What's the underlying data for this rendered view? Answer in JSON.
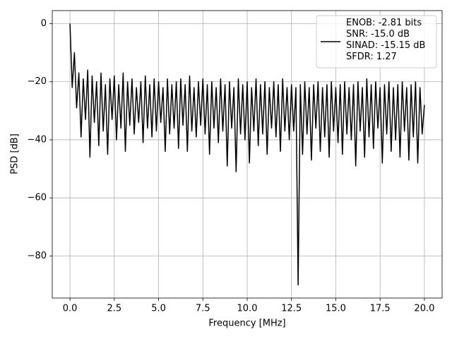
{
  "chart_data": {
    "type": "line",
    "xlabel": "Frequency [MHz]",
    "ylabel": "PSD [dB]",
    "x": [
      0,
      0.125,
      0.25,
      0.375,
      0.5,
      0.625,
      0.75,
      0.875,
      1,
      1.125,
      1.25,
      1.375,
      1.5,
      1.625,
      1.75,
      1.875,
      2,
      2.125,
      2.25,
      2.375,
      2.5,
      2.625,
      2.75,
      2.875,
      3,
      3.125,
      3.25,
      3.375,
      3.5,
      3.625,
      3.75,
      3.875,
      4,
      4.125,
      4.25,
      4.375,
      4.5,
      4.625,
      4.75,
      4.875,
      5,
      5.125,
      5.25,
      5.375,
      5.5,
      5.625,
      5.75,
      5.875,
      6,
      6.125,
      6.25,
      6.375,
      6.5,
      6.625,
      6.75,
      6.875,
      7,
      7.125,
      7.25,
      7.375,
      7.5,
      7.625,
      7.75,
      7.875,
      8,
      8.125,
      8.25,
      8.375,
      8.5,
      8.625,
      8.75,
      8.875,
      9,
      9.125,
      9.25,
      9.375,
      9.5,
      9.625,
      9.75,
      9.875,
      10,
      10.125,
      10.25,
      10.375,
      10.5,
      10.625,
      10.75,
      10.875,
      11,
      11.125,
      11.25,
      11.375,
      11.5,
      11.625,
      11.75,
      11.875,
      12,
      12.125,
      12.25,
      12.375,
      12.5,
      12.625,
      12.75,
      12.875,
      13,
      13.125,
      13.25,
      13.375,
      13.5,
      13.625,
      13.75,
      13.875,
      14,
      14.125,
      14.25,
      14.375,
      14.5,
      14.625,
      14.75,
      14.875,
      15,
      15.125,
      15.25,
      15.375,
      15.5,
      15.625,
      15.75,
      15.875,
      16,
      16.125,
      16.25,
      16.375,
      16.5,
      16.625,
      16.75,
      16.875,
      17,
      17.125,
      17.25,
      17.375,
      17.5,
      17.625,
      17.75,
      17.875,
      18,
      18.125,
      18.25,
      18.375,
      18.5,
      18.625,
      18.75,
      18.875,
      19,
      19.125,
      19.25,
      19.375,
      19.5,
      19.625,
      19.75,
      19.875,
      20
    ],
    "series": [
      {
        "name": "ENOB: -2.81 bits\nSNR: -15.0 dB\nSINAD: -15.15 dB\nSFDR: 1.27",
        "color": "#000000",
        "values": [
          0,
          -22,
          -10,
          -29,
          -17,
          -39,
          -19,
          -33,
          -16,
          -46,
          -18,
          -34,
          -20,
          -42,
          -17,
          -37,
          -21,
          -45,
          -19,
          -33,
          -18,
          -40,
          -21,
          -36,
          -17,
          -44,
          -20,
          -35,
          -19,
          -38,
          -22,
          -34,
          -20,
          -41,
          -18,
          -36,
          -21,
          -39,
          -19,
          -37,
          -20,
          -34,
          -22,
          -44,
          -19,
          -38,
          -21,
          -36,
          -20,
          -43,
          -19,
          -35,
          -21,
          -44,
          -18,
          -37,
          -22,
          -39,
          -20,
          -35,
          -19,
          -38,
          -21,
          -45,
          -20,
          -36,
          -22,
          -41,
          -19,
          -37,
          -21,
          -49,
          -20,
          -36,
          -22,
          -51,
          -19,
          -38,
          -21,
          -40,
          -20,
          -48,
          -22,
          -37,
          -19,
          -42,
          -21,
          -38,
          -20,
          -45,
          -22,
          -36,
          -20,
          -39,
          -21,
          -44,
          -19,
          -37,
          -22,
          -40,
          -21,
          -37,
          -22,
          -90,
          -21,
          -45,
          -20,
          -38,
          -22,
          -47,
          -21,
          -36,
          -20,
          -44,
          -22,
          -39,
          -21,
          -46,
          -20,
          -37,
          -22,
          -41,
          -21,
          -45,
          -20,
          -38,
          -22,
          -40,
          -21,
          -49,
          -20,
          -37,
          -22,
          -46,
          -19,
          -39,
          -21,
          -43,
          -20,
          -36,
          -22,
          -48,
          -21,
          -38,
          -20,
          -44,
          -22,
          -40,
          -21,
          -46,
          -20,
          -37,
          -22,
          -47,
          -21,
          -39,
          -20,
          -48,
          -22,
          -38,
          -28
        ]
      }
    ],
    "xlim": [
      -1,
      21
    ],
    "ylim": [
      -94.5,
      4.5
    ],
    "xticks": [
      {
        "value": 0,
        "label": "0.0"
      },
      2.5,
      {
        "value": 5,
        "label": "5.0"
      },
      7.5,
      {
        "value": 10,
        "label": "10.0"
      },
      12.5,
      {
        "value": 15,
        "label": "15.0"
      },
      17.5,
      {
        "value": 20,
        "label": "20.0"
      }
    ],
    "yticks": [
      {
        "value": -80,
        "label": "−80"
      },
      {
        "value": -60,
        "label": "−60"
      },
      {
        "value": -40,
        "label": "−40"
      },
      {
        "value": -20,
        "label": "−20"
      },
      0
    ],
    "grid": true,
    "legend": "upper right"
  }
}
